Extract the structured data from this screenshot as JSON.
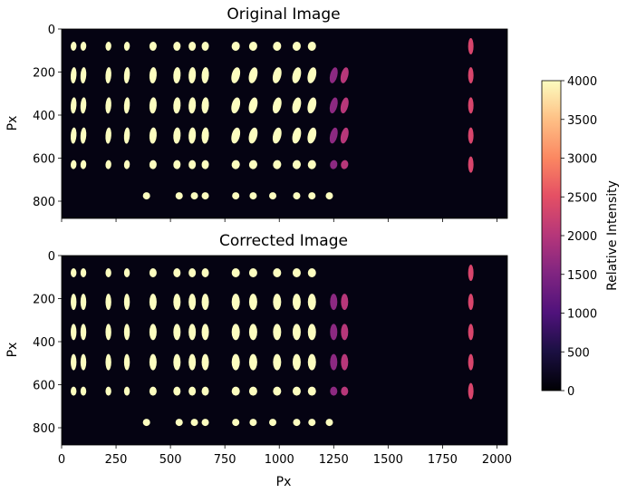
{
  "chart_data": [
    {
      "type": "heatmap",
      "title": "Original Image",
      "xlabel": "",
      "ylabel": "Px",
      "xlim": [
        0,
        2048
      ],
      "ylim": [
        880,
        0
      ],
      "x_ticks": [
        0,
        250,
        500,
        750,
        1000,
        1250,
        1500,
        1750,
        2000
      ],
      "y_ticks": [
        "0",
        "200",
        "400",
        "600",
        "800"
      ],
      "grid": false
    },
    {
      "type": "heatmap",
      "title": "Corrected Image",
      "xlabel": "Px",
      "ylabel": "Px",
      "xlim": [
        0,
        2048
      ],
      "ylim": [
        880,
        0
      ],
      "x_ticks": [
        "0",
        "250",
        "500",
        "750",
        "1000",
        "1250",
        "1500",
        "1750",
        "2000"
      ],
      "y_ticks": [
        "0",
        "200",
        "400",
        "600",
        "800"
      ],
      "grid": false
    }
  ],
  "colorbar": {
    "label": "Relative Intensity",
    "colormap": "magma",
    "range": [
      0,
      4000
    ],
    "ticks": [
      "0",
      "500",
      "1000",
      "1500",
      "2000",
      "2500",
      "3000",
      "3500",
      "4000"
    ]
  }
}
